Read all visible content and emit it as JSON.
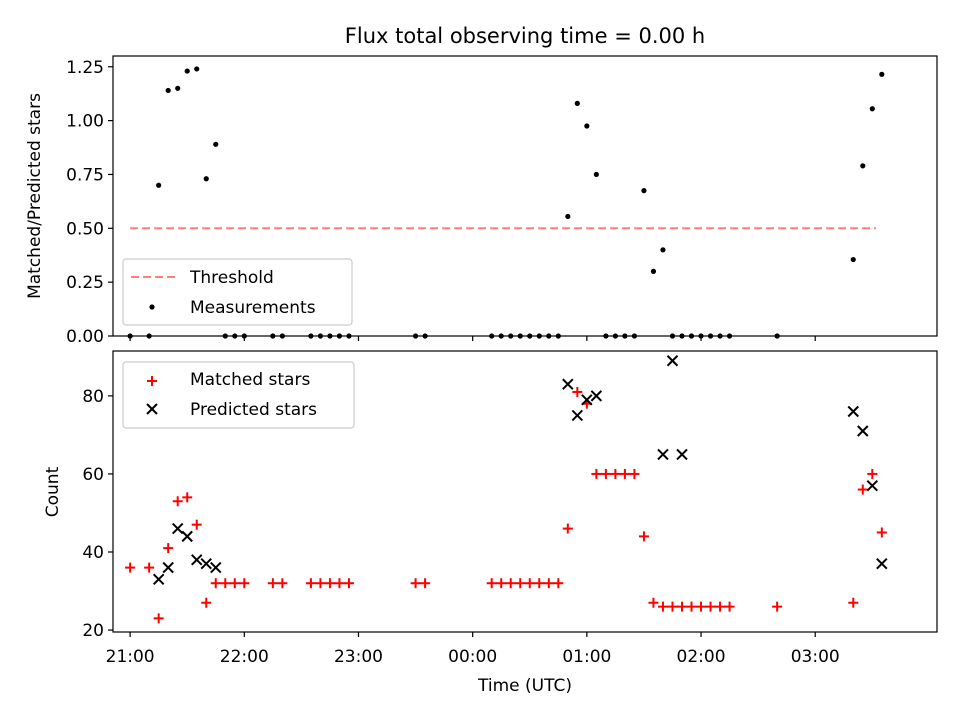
{
  "title": "Flux total observing time = 0.00 h",
  "chart_data": [
    {
      "type": "scatter",
      "panel": "top",
      "title": "Flux total observing time = 0.00 h",
      "xlabel": "",
      "ylabel": "Matched/Predicted stars",
      "xlim": [
        "20:51",
        "04:04"
      ],
      "ylim": [
        0.0,
        1.3
      ],
      "yticks": [
        0.0,
        0.25,
        0.5,
        0.75,
        1.0,
        1.25
      ],
      "ytick_labels": [
        "0.00",
        "0.25",
        "0.50",
        "0.75",
        "1.00",
        "1.25"
      ],
      "xticks": [
        "21:00",
        "22:00",
        "23:00",
        "00:00",
        "01:00",
        "02:00",
        "03:00"
      ],
      "show_xtick_labels": false,
      "grid": false,
      "legend": {
        "placement": "lower-left",
        "entries": [
          "Threshold",
          "Measurements"
        ]
      },
      "series": [
        {
          "name": "Threshold",
          "kind": "dashed-line",
          "color": "#ff7f7f",
          "x": [
            "21:00",
            "03:32"
          ],
          "y": [
            0.5,
            0.5
          ]
        },
        {
          "name": "Measurements",
          "kind": "dot",
          "color": "#000000",
          "x": [
            "21:00",
            "21:10",
            "21:15",
            "21:20",
            "21:25",
            "21:30",
            "21:35",
            "21:40",
            "21:45",
            "21:50",
            "21:55",
            "22:00",
            "22:15",
            "22:20",
            "22:35",
            "22:40",
            "22:45",
            "22:50",
            "22:55",
            "23:30",
            "23:35",
            "00:10",
            "00:15",
            "00:20",
            "00:25",
            "00:30",
            "00:35",
            "00:40",
            "00:45",
            "00:50",
            "00:55",
            "01:00",
            "01:05",
            "01:10",
            "01:15",
            "01:20",
            "01:25",
            "01:30",
            "01:35",
            "01:40",
            "01:45",
            "01:50",
            "01:55",
            "02:00",
            "02:05",
            "02:10",
            "02:15",
            "02:40",
            "03:20",
            "03:25",
            "03:30",
            "03:35"
          ],
          "y": [
            0,
            0,
            0.7,
            1.14,
            1.15,
            1.23,
            1.24,
            0.73,
            0.89,
            0,
            0,
            0,
            0,
            0,
            0,
            0,
            0,
            0,
            0,
            0,
            0,
            0,
            0,
            0,
            0,
            0,
            0,
            0,
            0,
            0.555,
            1.08,
            0.975,
            0.75,
            0,
            0,
            0,
            0,
            0.675,
            0.3,
            0.4,
            0,
            0,
            0,
            0,
            0,
            0,
            0,
            0,
            0.355,
            0.79,
            1.055,
            1.215
          ]
        }
      ]
    },
    {
      "type": "scatter",
      "panel": "bottom",
      "title": "",
      "xlabel": "Time (UTC)",
      "ylabel": "Count",
      "xlim": [
        "20:51",
        "04:04"
      ],
      "ylim": [
        19.5,
        91.5
      ],
      "yticks": [
        20,
        40,
        60,
        80
      ],
      "ytick_labels": [
        "20",
        "40",
        "60",
        "80"
      ],
      "xticks": [
        "21:00",
        "22:00",
        "23:00",
        "00:00",
        "01:00",
        "02:00",
        "03:00"
      ],
      "xtick_labels": [
        "21:00",
        "22:00",
        "23:00",
        "00:00",
        "01:00",
        "02:00",
        "03:00"
      ],
      "grid": false,
      "legend": {
        "placement": "upper-left",
        "entries": [
          "Matched stars",
          "Predicted stars"
        ]
      },
      "series": [
        {
          "name": "Matched stars",
          "kind": "plus",
          "color": "#ff0000",
          "x": [
            "21:00",
            "21:10",
            "21:15",
            "21:20",
            "21:25",
            "21:30",
            "21:35",
            "21:40",
            "21:45",
            "21:50",
            "21:55",
            "22:00",
            "22:15",
            "22:20",
            "22:35",
            "22:40",
            "22:45",
            "22:50",
            "22:55",
            "23:30",
            "23:35",
            "00:10",
            "00:15",
            "00:20",
            "00:25",
            "00:30",
            "00:35",
            "00:40",
            "00:45",
            "00:50",
            "00:55",
            "01:00",
            "01:05",
            "01:10",
            "01:15",
            "01:20",
            "01:25",
            "01:30",
            "01:35",
            "01:40",
            "01:45",
            "01:50",
            "01:55",
            "02:00",
            "02:05",
            "02:10",
            "02:15",
            "02:40",
            "03:20",
            "03:25",
            "03:30",
            "03:35"
          ],
          "y": [
            36,
            36,
            23,
            41,
            53,
            54,
            47,
            27,
            32,
            32,
            32,
            32,
            32,
            32,
            32,
            32,
            32,
            32,
            32,
            32,
            32,
            32,
            32,
            32,
            32,
            32,
            32,
            32,
            32,
            46,
            81,
            78,
            60,
            60,
            60,
            60,
            60,
            44,
            27,
            26,
            26,
            26,
            26,
            26,
            26,
            26,
            26,
            26,
            27,
            56,
            60,
            45
          ]
        },
        {
          "name": "Predicted stars",
          "kind": "x",
          "color": "#000000",
          "x": [
            "21:15",
            "21:20",
            "21:25",
            "21:30",
            "21:35",
            "21:40",
            "21:45",
            "00:50",
            "00:55",
            "01:00",
            "01:05",
            "01:40",
            "01:45",
            "01:50",
            "03:20",
            "03:25",
            "03:30",
            "03:35"
          ],
          "y": [
            33,
            36,
            46,
            44,
            38,
            37,
            36,
            83,
            75,
            79,
            80,
            65,
            89,
            65,
            76,
            71,
            57,
            37
          ]
        }
      ]
    }
  ]
}
